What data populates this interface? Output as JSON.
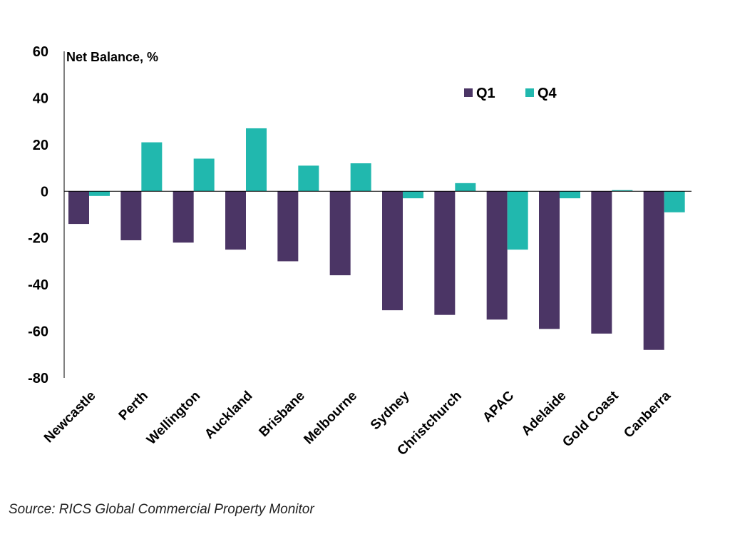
{
  "chart_data": {
    "type": "bar",
    "ylabel": "Net Balance, %",
    "ylim": [
      -80,
      60
    ],
    "yticks": [
      60,
      40,
      20,
      0,
      -20,
      -40,
      -60,
      -80
    ],
    "categories": [
      "Newcastle",
      "Perth",
      "Wellington",
      "Auckland",
      "Brisbane",
      "Melbourne",
      "Sydney",
      "Christchurch",
      "APAC",
      "Adelaide",
      "Gold Coast",
      "Canberra"
    ],
    "series": [
      {
        "name": "Q1",
        "color": "#4b3565",
        "values": [
          -14,
          -21,
          -22,
          -25,
          -30,
          -36,
          -51,
          -53,
          -55,
          -59,
          -61,
          -68
        ]
      },
      {
        "name": "Q4",
        "color": "#21b8ae",
        "values": [
          -2,
          21,
          14,
          27,
          11,
          12,
          -3,
          3.5,
          -25,
          -3,
          0.5,
          -9
        ]
      }
    ],
    "legend": "top-right",
    "grid": false
  },
  "source": "Source: RICS Global Commercial Property Monitor"
}
